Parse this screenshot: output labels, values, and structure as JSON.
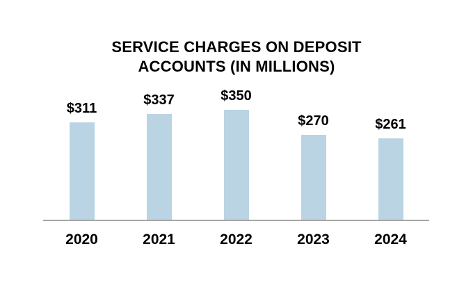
{
  "chart_data": {
    "type": "bar",
    "title": "SERVICE CHARGES ON DEPOSIT ACCOUNTS (IN MILLIONS)",
    "categories": [
      "2020",
      "2021",
      "2022",
      "2023",
      "2024"
    ],
    "values": [
      311,
      337,
      350,
      270,
      261
    ],
    "value_labels": [
      "$311",
      "$337",
      "$350",
      "$270",
      "$261"
    ],
    "ylim": [
      0,
      390
    ],
    "xlabel": "",
    "ylabel": "",
    "grid": "off",
    "legend": "none",
    "value_label_position": "above-bar",
    "colors": {
      "bar_fill": "#BAD4E3",
      "axis_line": "#A6A6A6",
      "text": "#000000",
      "background": "#FFFFFF"
    }
  }
}
